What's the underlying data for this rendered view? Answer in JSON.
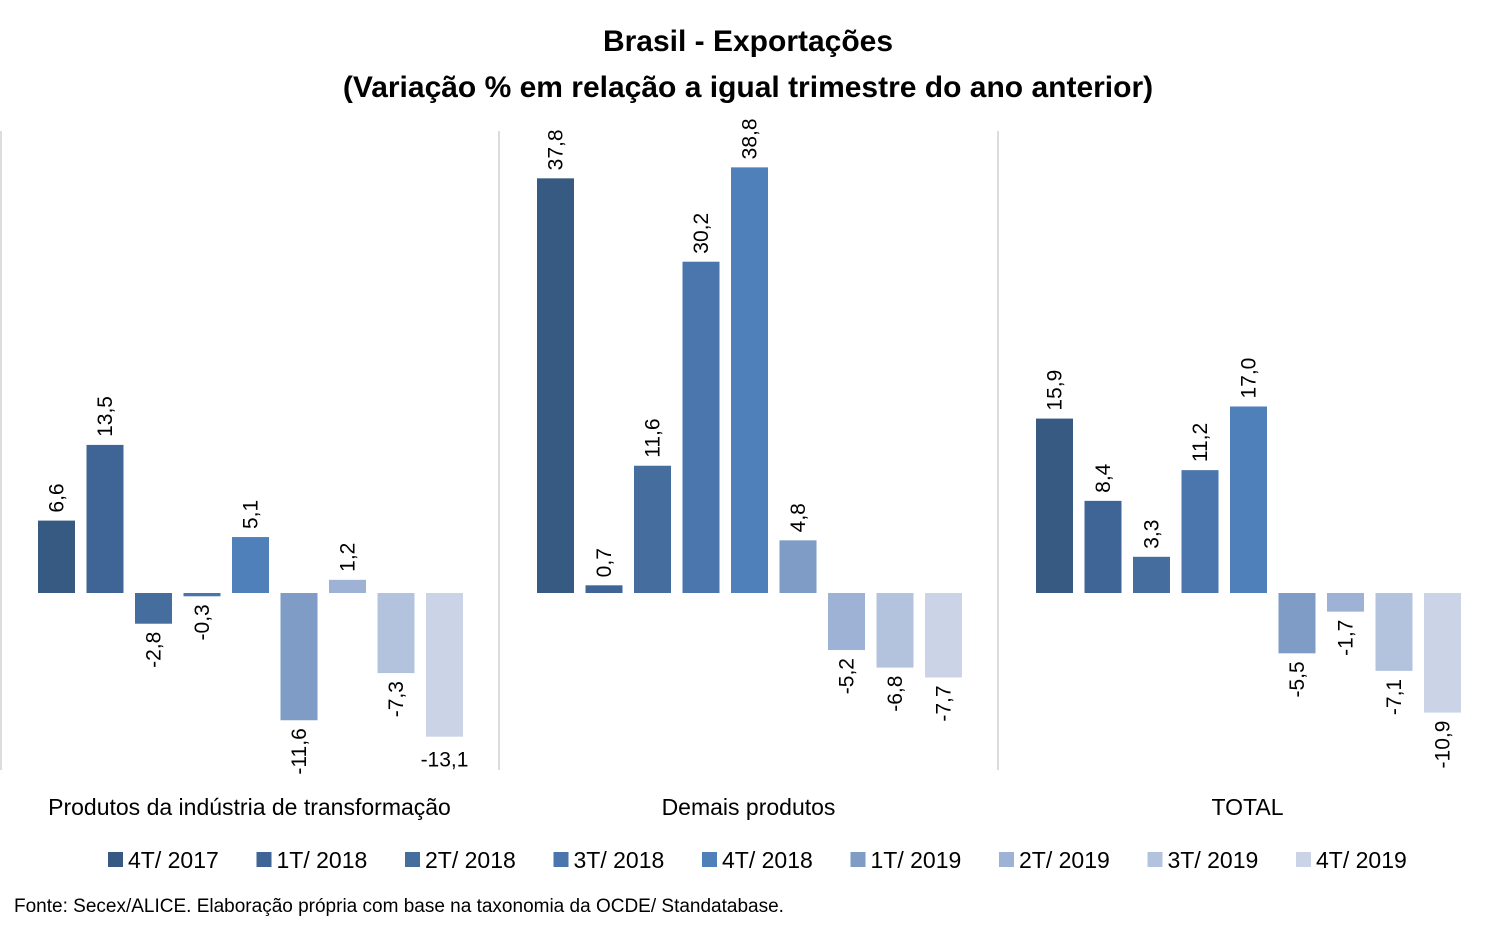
{
  "chart_data": {
    "type": "bar",
    "title": "Brasil - Exportações",
    "subtitle": "(Variação % em relação a igual trimestre do ano anterior)",
    "xlabel": "",
    "ylabel": "",
    "ylim": [
      -16,
      42
    ],
    "grid": false,
    "legend_position": "bottom",
    "categories": [
      "Produtos da indústria de transformação",
      "Demais produtos",
      "TOTAL"
    ],
    "series": [
      {
        "name": "4T/ 2017",
        "color": "#375A82",
        "values": [
          6.6,
          37.8,
          15.9
        ],
        "labels": [
          "6,6",
          "37,8",
          "15,9"
        ]
      },
      {
        "name": "1T/ 2018",
        "color": "#3E6595",
        "values": [
          13.5,
          0.7,
          8.4
        ],
        "labels": [
          "13,5",
          "0,7",
          "8,4"
        ]
      },
      {
        "name": "2T/ 2018",
        "color": "#456E9F",
        "values": [
          -2.8,
          11.6,
          3.3
        ],
        "labels": [
          "-2,8",
          "11,6",
          "3,3"
        ]
      },
      {
        "name": "3T/ 2018",
        "color": "#4A76AD",
        "values": [
          -0.3,
          30.2,
          11.2
        ],
        "labels": [
          "-0,3",
          "30,2",
          "11,2"
        ]
      },
      {
        "name": "4T/ 2018",
        "color": "#4F80BA",
        "values": [
          5.1,
          38.8,
          17.0
        ],
        "labels": [
          "5,1",
          "38,8",
          "17,0"
        ]
      },
      {
        "name": "1T/ 2019",
        "color": "#7E9CC6",
        "values": [
          -11.6,
          4.8,
          -5.5
        ],
        "labels": [
          "-11,6",
          "4,8",
          "-5,5"
        ]
      },
      {
        "name": "2T/ 2019",
        "color": "#9DB2D4",
        "values": [
          1.2,
          -5.2,
          -1.7
        ],
        "labels": [
          "1,2",
          "-5,2",
          "-1,7"
        ]
      },
      {
        "name": "3T/ 2019",
        "color": "#B4C3DD",
        "values": [
          -7.3,
          -6.8,
          -7.1
        ],
        "labels": [
          "-7,3",
          "-6,8",
          "-7,1"
        ]
      },
      {
        "name": "4T/ 2019",
        "color": "#CAD4E6",
        "values": [
          -13.1,
          -7.7,
          -10.9
        ],
        "labels": [
          "-13,1",
          "-7,7",
          "-10,9"
        ]
      }
    ],
    "source": "Fonte: Secex/ALICE. Elaboração própria com base na taxonomia da OCDE/ Standatabase."
  }
}
